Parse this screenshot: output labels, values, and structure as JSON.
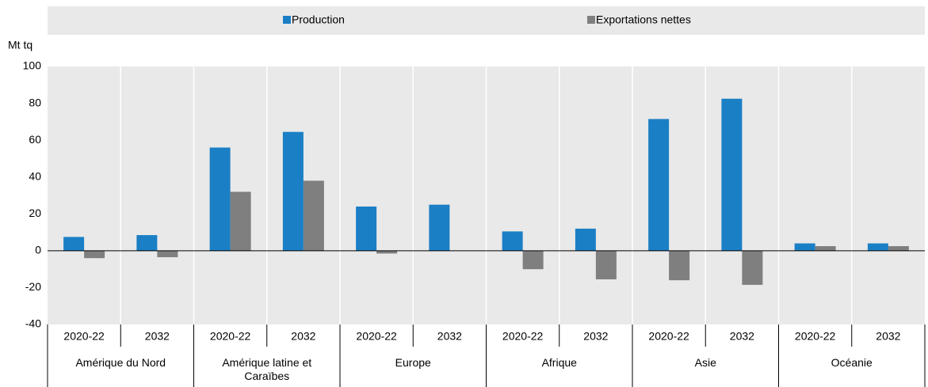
{
  "chart_data": {
    "type": "bar",
    "y_label": "Mt tq",
    "categories": [
      "2020-22",
      "2032",
      "2020-22",
      "2032",
      "2020-22",
      "2032",
      "2020-22",
      "2032",
      "2020-22",
      "2032",
      "2020-22",
      "2032"
    ],
    "groups": [
      "Amérique du Nord",
      "Amérique latine et Caraïbes",
      "Europe",
      "Afrique",
      "Asie",
      "Océanie"
    ],
    "series": [
      {
        "name": "Production",
        "color": "#1b7fc5",
        "values": [
          7.5,
          8.5,
          56,
          64.5,
          24,
          25,
          10.5,
          12,
          71.5,
          82.5,
          4,
          4
        ]
      },
      {
        "name": "Exportations nettes",
        "color": "#7f7f7f",
        "values": [
          -4,
          -3.5,
          32,
          38,
          -1.5,
          0,
          -10,
          -15.5,
          -16,
          -18.5,
          2.5,
          2.5
        ]
      }
    ],
    "ylim": [
      -40,
      100
    ],
    "yticks": [
      -40,
      -20,
      0,
      20,
      40,
      60,
      80,
      100
    ]
  }
}
